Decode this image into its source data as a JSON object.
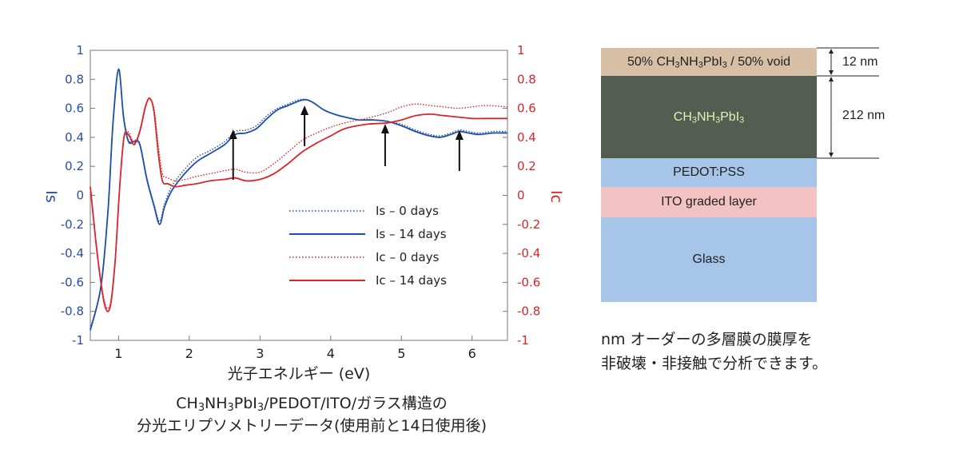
{
  "chart_data": {
    "type": "line",
    "xlabel": "光子エネルギー (eV)",
    "ylabel_left": "Is",
    "ylabel_right": "Ic",
    "xlim": [
      0.6,
      6.5
    ],
    "ylim": [
      -1,
      1
    ],
    "x_ticks": [
      "1",
      "2",
      "3",
      "4",
      "5",
      "6"
    ],
    "y_ticks": [
      "1",
      "0.8",
      "0.6",
      "0.4",
      "0.2",
      "0",
      "-0.2",
      "-0.4",
      "-0.6",
      "-0.8",
      "-1"
    ],
    "legend_placement": "center-right",
    "arrows_at_eV": [
      2.62,
      3.63,
      4.77,
      5.82
    ],
    "series": [
      {
        "name": "Is – 0 days",
        "color": "#1f4fa8",
        "style": "dotted",
        "x": [
          0.6,
          0.75,
          0.85,
          0.92,
          1.0,
          1.07,
          1.14,
          1.22,
          1.3,
          1.4,
          1.5,
          1.58,
          1.65,
          1.75,
          1.9,
          2.1,
          2.3,
          2.5,
          2.65,
          2.8,
          2.95,
          3.1,
          3.25,
          3.4,
          3.55,
          3.65,
          3.75,
          3.9,
          4.05,
          4.2,
          4.4,
          4.6,
          4.8,
          5.0,
          5.2,
          5.4,
          5.55,
          5.7,
          5.82,
          5.95,
          6.1,
          6.3,
          6.5
        ],
        "y": [
          -0.92,
          -0.62,
          -0.1,
          0.5,
          0.86,
          0.55,
          0.38,
          0.38,
          0.36,
          0.12,
          -0.06,
          -0.18,
          -0.06,
          0.06,
          0.16,
          0.26,
          0.31,
          0.37,
          0.44,
          0.45,
          0.48,
          0.55,
          0.6,
          0.63,
          0.66,
          0.66,
          0.64,
          0.59,
          0.56,
          0.54,
          0.52,
          0.52,
          0.51,
          0.49,
          0.45,
          0.42,
          0.41,
          0.43,
          0.45,
          0.44,
          0.43,
          0.44,
          0.44
        ]
      },
      {
        "name": "Is – 14 days",
        "color": "#1f4fa8",
        "style": "solid",
        "x": [
          0.6,
          0.75,
          0.85,
          0.92,
          1.0,
          1.07,
          1.14,
          1.22,
          1.3,
          1.4,
          1.5,
          1.58,
          1.65,
          1.75,
          1.9,
          2.1,
          2.3,
          2.5,
          2.65,
          2.8,
          2.95,
          3.1,
          3.25,
          3.4,
          3.55,
          3.65,
          3.75,
          3.9,
          4.05,
          4.2,
          4.4,
          4.6,
          4.8,
          5.0,
          5.2,
          5.4,
          5.55,
          5.7,
          5.82,
          5.95,
          6.1,
          6.3,
          6.5
        ],
        "y": [
          -0.93,
          -0.63,
          -0.11,
          0.49,
          0.87,
          0.54,
          0.37,
          0.37,
          0.35,
          0.11,
          -0.07,
          -0.2,
          -0.08,
          0.03,
          0.13,
          0.23,
          0.29,
          0.35,
          0.42,
          0.43,
          0.46,
          0.53,
          0.59,
          0.62,
          0.65,
          0.66,
          0.64,
          0.59,
          0.56,
          0.54,
          0.52,
          0.52,
          0.51,
          0.48,
          0.44,
          0.41,
          0.4,
          0.42,
          0.44,
          0.43,
          0.42,
          0.43,
          0.43
        ]
      },
      {
        "name": "Ic – 0 days",
        "color": "#d8262c",
        "style": "dotted",
        "x": [
          0.6,
          0.7,
          0.8,
          0.88,
          0.95,
          1.02,
          1.08,
          1.15,
          1.22,
          1.3,
          1.38,
          1.44,
          1.5,
          1.56,
          1.62,
          1.7,
          1.8,
          1.95,
          2.1,
          2.3,
          2.5,
          2.65,
          2.8,
          3.0,
          3.2,
          3.4,
          3.6,
          3.8,
          4.0,
          4.2,
          4.5,
          4.8,
          5.0,
          5.2,
          5.4,
          5.6,
          5.8,
          6.0,
          6.2,
          6.5
        ],
        "y": [
          0.05,
          -0.4,
          -0.73,
          -0.75,
          -0.45,
          0.1,
          0.42,
          0.43,
          0.36,
          0.45,
          0.62,
          0.66,
          0.6,
          0.35,
          0.15,
          0.12,
          0.1,
          0.11,
          0.13,
          0.15,
          0.17,
          0.18,
          0.16,
          0.16,
          0.22,
          0.3,
          0.38,
          0.43,
          0.47,
          0.5,
          0.53,
          0.57,
          0.61,
          0.63,
          0.62,
          0.61,
          0.6,
          0.61,
          0.62,
          0.61
        ]
      },
      {
        "name": "Ic – 14 days",
        "color": "#d8262c",
        "style": "solid",
        "x": [
          0.6,
          0.7,
          0.8,
          0.88,
          0.95,
          1.02,
          1.08,
          1.15,
          1.22,
          1.3,
          1.38,
          1.44,
          1.5,
          1.56,
          1.62,
          1.7,
          1.8,
          1.95,
          2.1,
          2.3,
          2.5,
          2.65,
          2.8,
          3.0,
          3.2,
          3.4,
          3.6,
          3.8,
          4.0,
          4.2,
          4.5,
          4.8,
          5.0,
          5.2,
          5.4,
          5.6,
          5.8,
          6.0,
          6.2,
          6.5
        ],
        "y": [
          0.06,
          -0.41,
          -0.75,
          -0.77,
          -0.46,
          0.09,
          0.41,
          0.41,
          0.35,
          0.44,
          0.61,
          0.67,
          0.58,
          0.3,
          0.1,
          0.08,
          0.06,
          0.07,
          0.08,
          0.1,
          0.11,
          0.12,
          0.1,
          0.11,
          0.15,
          0.22,
          0.3,
          0.36,
          0.41,
          0.46,
          0.49,
          0.5,
          0.52,
          0.55,
          0.56,
          0.55,
          0.54,
          0.53,
          0.53,
          0.53
        ]
      }
    ]
  },
  "caption": {
    "line1_a": "CH",
    "line1_s1": "3",
    "line1_b": "NH",
    "line1_s2": "3",
    "line1_c": "PbI",
    "line1_s3": "3",
    "line1_d": "/PEDOT/ITO/ガラス構造の",
    "line2": "分光エリプソメトリーデータ(使用前と14日使用後)"
  },
  "layers": {
    "top_a": "50% CH",
    "top_s1": "3",
    "top_b": "NH",
    "top_s2": "3",
    "top_c": "PbI",
    "top_s3": "3",
    "top_d": " / 50% void",
    "perov_a": "CH",
    "perov_s1": "3",
    "perov_b": "NH",
    "perov_s2": "3",
    "perov_c": "PbI",
    "perov_s3": "3",
    "pedot": "PEDOT:PSS",
    "ito": "ITO graded layer",
    "glass": "Glass",
    "thickness_top": "12 nm",
    "thickness_perov": "212 nm",
    "colors": {
      "top": "#d7bfa6",
      "perov": "#535d52",
      "pedot": "#a6c5e8",
      "ito": "#f3c3c3",
      "glass": "#a6c5e8",
      "perov_text": "#e6efb2"
    }
  },
  "note": {
    "line1": "nm オーダーの多層膜の膜厚を",
    "line2": "非破壊・非接触で分析できます。"
  }
}
